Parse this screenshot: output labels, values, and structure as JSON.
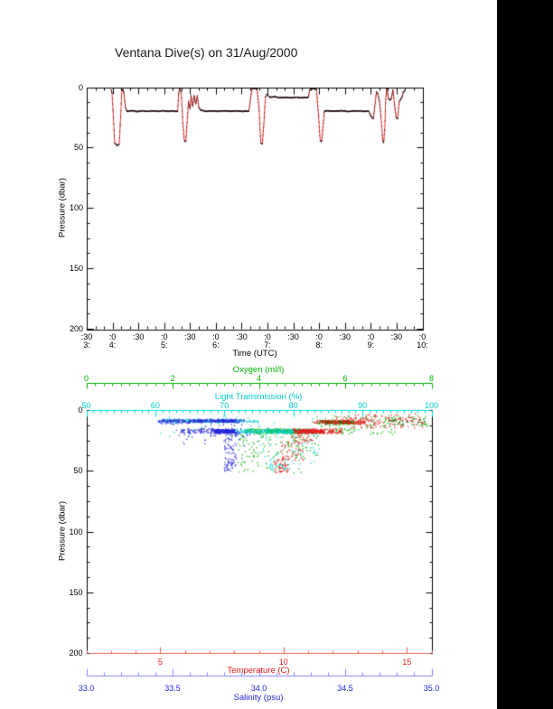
{
  "colors": {
    "background": "#ffffff",
    "right_stripe": "#000000",
    "frame_black": "#000000",
    "trace_red": "#f13434",
    "marker_black": "#000000",
    "oxygen_green": "#00b300",
    "oxygen_dark_green": "#006600",
    "light_cyan": "#00cccc",
    "light_cyan_axis": "#00dddd",
    "temperature_red": "#e81b1b",
    "temperature_axis_red": "#f25c5c",
    "salinity_blue": "#2525d8",
    "salinity_axis_blue": "#8585fa"
  },
  "chart_data": [
    {
      "type": "line",
      "title": "Ventana Dive(s) on 31/Aug/2000",
      "xlabel": "Time (UTC)",
      "ylabel": "Pressure (dbar)",
      "x_range_hours_utc": [
        3.5,
        10.0
      ],
      "x_major_tick_interval_min": 30,
      "x_minor_tick_interval_min": 10,
      "x_tick_labels_minutes": [
        ":30",
        ":0",
        ":30",
        ":0",
        ":30",
        ":0",
        ":30",
        ":0",
        ":30",
        ":0",
        ":30",
        ":0",
        ":30",
        ":0"
      ],
      "x_tick_labels_hours": [
        "3:",
        "4:",
        "",
        "5:",
        "",
        "6:",
        "",
        "7:",
        "",
        "8:",
        "",
        "9:",
        "",
        "10:"
      ],
      "ylim": [
        0,
        200
      ],
      "y_inverted": true,
      "y_ticks": [
        0,
        50,
        100,
        150,
        200
      ],
      "y_tick_labels": [
        "0",
        "50",
        "100",
        "150",
        "200"
      ],
      "y_minor_tick_interval": 12.5,
      "grid": false,
      "series": [
        {
          "name": "dive-pressure-trace",
          "line_color": "#f13434",
          "marker_color": "#000000",
          "points_time_hours_vs_dbar": [
            [
              3.97,
              2
            ],
            [
              3.99,
              5
            ],
            [
              4.01,
              20
            ],
            [
              4.04,
              46
            ],
            [
              4.07,
              48
            ],
            [
              4.1,
              48
            ],
            [
              4.13,
              47
            ],
            [
              4.15,
              30
            ],
            [
              4.18,
              3
            ],
            [
              4.2,
              2
            ],
            [
              4.22,
              5
            ],
            [
              4.25,
              17
            ],
            [
              4.28,
              20
            ],
            [
              4.38,
              19.5
            ],
            [
              4.48,
              20.2
            ],
            [
              4.58,
              19.6
            ],
            [
              4.68,
              20
            ],
            [
              4.78,
              19.6
            ],
            [
              4.88,
              20.1
            ],
            [
              4.98,
              19.7
            ],
            [
              5.08,
              20
            ],
            [
              5.18,
              19.8
            ],
            [
              5.26,
              20
            ],
            [
              5.28,
              5
            ],
            [
              5.3,
              1
            ],
            [
              5.33,
              4
            ],
            [
              5.36,
              30
            ],
            [
              5.39,
              44
            ],
            [
              5.42,
              45
            ],
            [
              5.45,
              25
            ],
            [
              5.47,
              12
            ],
            [
              5.5,
              18
            ],
            [
              5.52,
              7
            ],
            [
              5.55,
              16
            ],
            [
              5.58,
              7
            ],
            [
              5.61,
              14
            ],
            [
              5.64,
              7
            ],
            [
              5.67,
              17
            ],
            [
              5.71,
              19
            ],
            [
              5.8,
              20
            ],
            [
              5.92,
              19.6
            ],
            [
              6.04,
              20
            ],
            [
              6.16,
              19.7
            ],
            [
              6.28,
              20
            ],
            [
              6.4,
              19.6
            ],
            [
              6.52,
              20
            ],
            [
              6.64,
              19.8
            ],
            [
              6.67,
              10
            ],
            [
              6.7,
              1
            ],
            [
              6.76,
              1
            ],
            [
              6.8,
              2
            ],
            [
              6.84,
              20
            ],
            [
              6.87,
              46
            ],
            [
              6.9,
              47
            ],
            [
              6.93,
              30
            ],
            [
              6.96,
              8
            ],
            [
              6.99,
              6
            ],
            [
              7.05,
              8.5
            ],
            [
              7.15,
              8
            ],
            [
              7.25,
              8.8
            ],
            [
              7.35,
              8.3
            ],
            [
              7.45,
              8.8
            ],
            [
              7.55,
              8.4
            ],
            [
              7.65,
              8.8
            ],
            [
              7.75,
              8.5
            ],
            [
              7.79,
              8.6
            ],
            [
              7.82,
              2
            ],
            [
              7.86,
              1
            ],
            [
              7.92,
              1.5
            ],
            [
              7.95,
              2
            ],
            [
              7.99,
              25
            ],
            [
              8.02,
              44
            ],
            [
              8.05,
              45
            ],
            [
              8.08,
              30
            ],
            [
              8.1,
              20
            ],
            [
              8.15,
              19.5
            ],
            [
              8.28,
              20
            ],
            [
              8.42,
              19.6
            ],
            [
              8.56,
              20
            ],
            [
              8.7,
              19.7
            ],
            [
              8.84,
              20
            ],
            [
              8.96,
              19.8
            ],
            [
              9.0,
              24
            ],
            [
              9.05,
              26
            ],
            [
              9.08,
              15
            ],
            [
              9.11,
              4
            ],
            [
              9.14,
              6
            ],
            [
              9.17,
              12
            ],
            [
              9.2,
              25
            ],
            [
              9.23,
              44
            ],
            [
              9.25,
              46
            ],
            [
              9.27,
              35
            ],
            [
              9.29,
              10
            ],
            [
              9.31,
              1
            ],
            [
              9.34,
              9
            ],
            [
              9.37,
              11
            ],
            [
              9.4,
              9
            ],
            [
              9.43,
              2
            ],
            [
              9.46,
              15
            ],
            [
              9.49,
              25
            ],
            [
              9.52,
              26
            ],
            [
              9.55,
              12
            ],
            [
              9.58,
              10
            ],
            [
              9.61,
              8
            ],
            [
              9.63,
              4
            ],
            [
              9.66,
              3
            ]
          ]
        }
      ]
    },
    {
      "type": "scatter",
      "ylabel": "Pressure (dbar)",
      "ylim": [
        0,
        200
      ],
      "y_inverted": true,
      "y_ticks": [
        0,
        50,
        100,
        150,
        200
      ],
      "y_tick_labels": [
        "0",
        "50",
        "100",
        "150",
        "200"
      ],
      "y_minor_tick_interval": 12.5,
      "grid": false,
      "series": [
        {
          "name": "oxygen",
          "axis_label": "Oxygen (ml/l)",
          "axis_position": "top-detached",
          "color": "#00b300",
          "xlim": [
            0,
            8
          ],
          "x_ticks": [
            0,
            2,
            4,
            6,
            8
          ],
          "x_tick_labels": [
            "0",
            "2",
            "4",
            "6",
            "8"
          ],
          "x_minor_tick_interval": 0.2,
          "clusters_value_pressure": [
            {
              "v": [
                3.66,
                5.3
              ],
              "p": [
                15.5,
                19.5
              ],
              "n": 190
            },
            {
              "v": [
                4.2,
                5.2
              ],
              "p": [
                16.0,
                19.0
              ],
              "n": 120
            },
            {
              "v": [
                5.35,
                6.25
              ],
              "p": [
                8.5,
                11.5
              ],
              "n": 150
            },
            {
              "v": [
                5.2,
                7.9
              ],
              "p": [
                4.5,
                14.0
              ],
              "n": 110
            },
            {
              "v": [
                5.3,
                7.2
              ],
              "p": [
                14.0,
                20.0
              ],
              "n": 50
            },
            {
              "v": [
                3.5,
                5.0
              ],
              "p": [
                20.0,
                52.0
              ],
              "n": 110
            },
            {
              "v": [
                4.6,
                5.4
              ],
              "p": [
                20.0,
                40.0
              ],
              "n": 40
            },
            {
              "v": [
                5.45,
                6.15
              ],
              "p": [
                9.0,
                11.0
              ],
              "n": 90,
              "color": "#006600"
            },
            {
              "v": [
                7.0,
                7.85
              ],
              "p": [
                7.0,
                12.0
              ],
              "n": 35,
              "color": "#006600"
            }
          ]
        },
        {
          "name": "light-transmission",
          "axis_label": "Light Transmission (%)",
          "axis_position": "top-frame",
          "color": "#00cccc",
          "xlim": [
            50,
            100
          ],
          "x_ticks": [
            50,
            60,
            70,
            80,
            90,
            100
          ],
          "x_tick_labels": [
            "50",
            "60",
            "70",
            "80",
            "90",
            "100"
          ],
          "x_minor_tick_interval": 1,
          "clusters_value_pressure": [
            {
              "v": [
                61,
                75
              ],
              "p": [
                7.5,
                10.5
              ],
              "n": 150
            },
            {
              "v": [
                63,
                72
              ],
              "p": [
                8.0,
                10.0
              ],
              "n": 80
            },
            {
              "v": [
                70,
                83.5
              ],
              "p": [
                15.5,
                19.5
              ],
              "n": 170
            },
            {
              "v": [
                72,
                80
              ],
              "p": [
                16.0,
                19.0
              ],
              "n": 90
            },
            {
              "v": [
                75,
                84
              ],
              "p": [
                19.0,
                45.0
              ],
              "n": 55
            },
            {
              "v": [
                76.5,
                79.5
              ],
              "p": [
                44.0,
                51.0
              ],
              "n": 30
            },
            {
              "v": [
                60,
                85
              ],
              "p": [
                5.0,
                22.0
              ],
              "n": 40
            }
          ]
        },
        {
          "name": "temperature",
          "axis_label": "Temperature (C)",
          "axis_position": "bottom-frame",
          "color": "#e81b1b",
          "xlim": [
            2,
            16
          ],
          "x_ticks": [
            5,
            10,
            15
          ],
          "x_tick_labels": [
            "5",
            "10",
            "15"
          ],
          "x_minor_tick_interval": 1,
          "clusters_value_pressure": [
            {
              "v": [
                10.4,
                12.4
              ],
              "p": [
                15.5,
                19.5
              ],
              "n": 180
            },
            {
              "v": [
                10.6,
                11.6
              ],
              "p": [
                16.0,
                19.0
              ],
              "n": 100
            },
            {
              "v": [
                11.2,
                13.3
              ],
              "p": [
                8.5,
                11.5
              ],
              "n": 130
            },
            {
              "v": [
                12.5,
                15.7
              ],
              "p": [
                3.0,
                15.0
              ],
              "n": 100
            },
            {
              "v": [
                9.6,
                10.2
              ],
              "p": [
                40.0,
                52.0
              ],
              "n": 45
            },
            {
              "v": [
                9.9,
                10.8
              ],
              "p": [
                25.0,
                42.0
              ],
              "n": 45
            },
            {
              "v": [
                10.3,
                11.2
              ],
              "p": [
                19.0,
                28.0
              ],
              "n": 35
            },
            {
              "v": [
                12.0,
                14.0
              ],
              "p": [
                5.0,
                12.0
              ],
              "n": 50
            }
          ]
        },
        {
          "name": "salinity",
          "axis_label": "Salinity (psu)",
          "axis_position": "bottom-detached",
          "color": "#2525d8",
          "xlim": [
            33.0,
            35.0
          ],
          "x_ticks": [
            33.0,
            33.5,
            34.0,
            34.5,
            35.0
          ],
          "x_tick_labels": [
            "33.0",
            "33.5",
            "34.0",
            "34.5",
            "35.0"
          ],
          "x_minor_tick_interval": 0.1,
          "clusters_value_pressure": [
            {
              "v": [
                33.42,
                33.92
              ],
              "p": [
                7.5,
                10.5
              ],
              "n": 160
            },
            {
              "v": [
                33.62,
                33.86
              ],
              "p": [
                8.0,
                10.0
              ],
              "n": 110
            },
            {
              "v": [
                33.55,
                33.9
              ],
              "p": [
                15.5,
                19.5
              ],
              "n": 130
            },
            {
              "v": [
                33.74,
                33.86
              ],
              "p": [
                16.0,
                19.0
              ],
              "n": 200
            },
            {
              "v": [
                33.8,
                33.87
              ],
              "p": [
                19.0,
                51.0
              ],
              "n": 90
            },
            {
              "v": [
                33.5,
                33.95
              ],
              "p": [
                10.0,
                30.0
              ],
              "n": 50
            },
            {
              "v": [
                33.42,
                33.6
              ],
              "p": [
                8.0,
                12.0
              ],
              "n": 30
            }
          ]
        }
      ]
    }
  ]
}
